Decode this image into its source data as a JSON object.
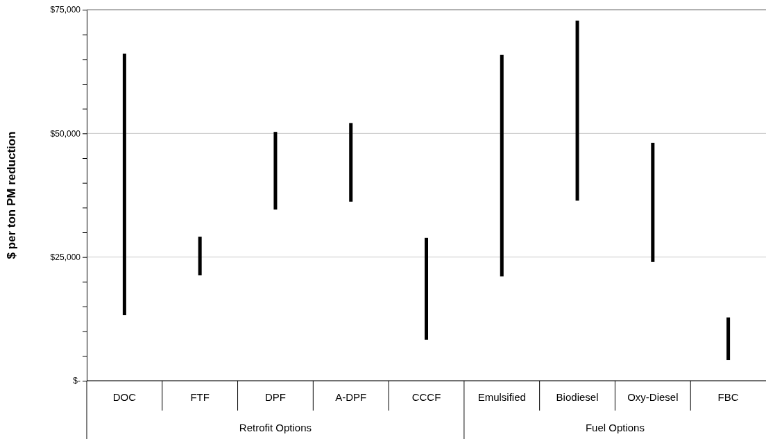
{
  "chart_data": {
    "type": "bar",
    "ylabel": "$ per ton PM reduction",
    "categories": [
      "DOC",
      "FTF",
      "DPF",
      "A-DPF",
      "CCCF",
      "Emulsified",
      "Biodiesel",
      "Oxy-Diesel",
      "FBC"
    ],
    "base": [
      13300,
      21300,
      34600,
      36200,
      8300,
      21100,
      36400,
      24000,
      4200
    ],
    "values": [
      52800,
      7800,
      15700,
      15900,
      20600,
      44800,
      36400,
      24100,
      8600
    ],
    "color": "#000000",
    "ylim": [
      0,
      75000
    ],
    "yticks": [
      {
        "value": 0,
        "label": "$-"
      },
      {
        "value": 5000,
        "label": null
      },
      {
        "value": 10000,
        "label": null
      },
      {
        "value": 15000,
        "label": null
      },
      {
        "value": 20000,
        "label": null
      },
      {
        "value": 25000,
        "label": "$25,000"
      },
      {
        "value": 30000,
        "label": null
      },
      {
        "value": 35000,
        "label": null
      },
      {
        "value": 40000,
        "label": null
      },
      {
        "value": 45000,
        "label": null
      },
      {
        "value": 50000,
        "label": "$50,000"
      },
      {
        "value": 55000,
        "label": null
      },
      {
        "value": 60000,
        "label": null
      },
      {
        "value": 65000,
        "label": null
      },
      {
        "value": 70000,
        "label": null
      },
      {
        "value": 75000,
        "label": "$75,000"
      }
    ],
    "grid": "y",
    "annotations": [
      "Retrofit Options",
      "Fuel Options"
    ]
  }
}
